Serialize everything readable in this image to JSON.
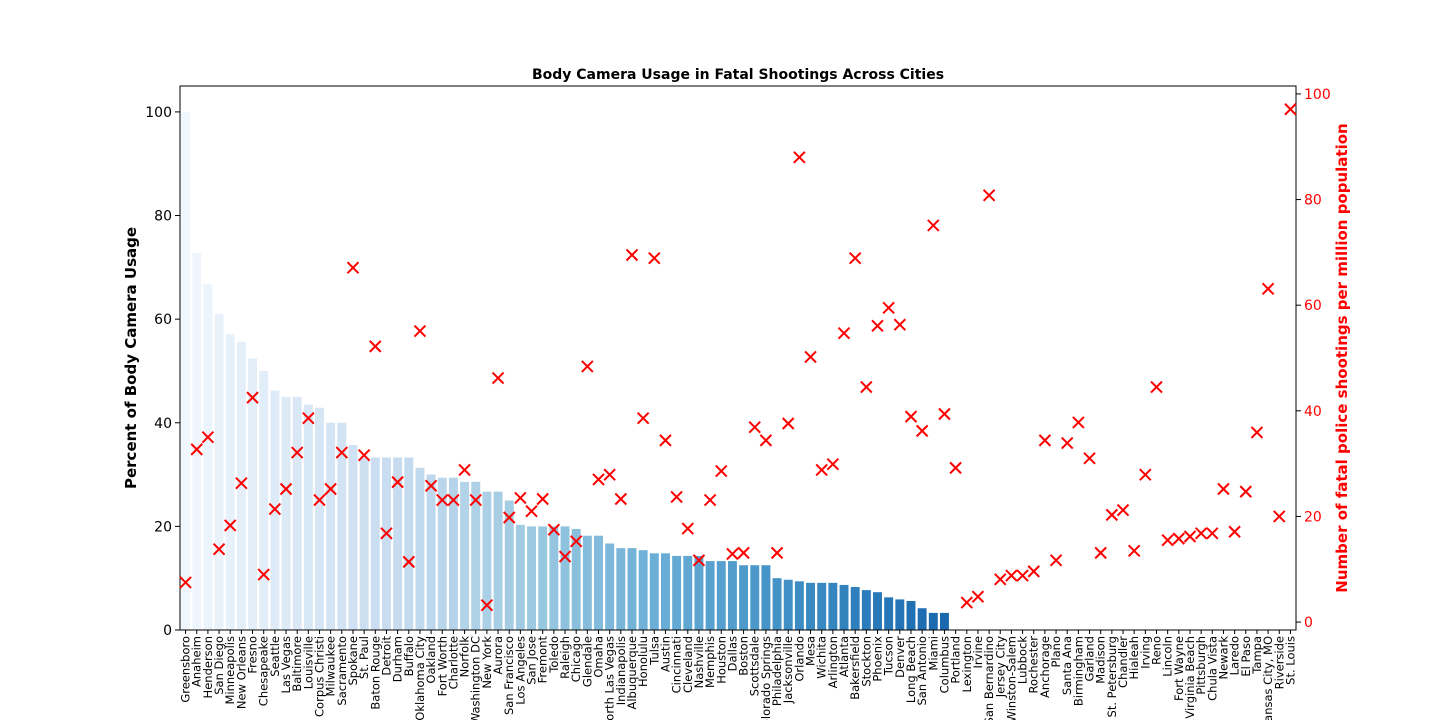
{
  "chart_data": {
    "type": "bar",
    "title": "Body Camera Usage in Fatal Shootings Across Cities",
    "ylabel": "Percent of Body Camera Usage",
    "y2label": "Number of fatal police shootings per million population",
    "ylim": [
      0,
      105
    ],
    "y2lim": [
      -1.5,
      101.5
    ],
    "yticks": [
      0,
      20,
      40,
      60,
      80,
      100
    ],
    "y2ticks": [
      0,
      20,
      40,
      60,
      80,
      100
    ],
    "bar_colormap": "Blues",
    "marker_color": "#ff0000",
    "marker_symbol": "x",
    "categories": [
      "Greensboro",
      "Anaheim",
      "Henderson",
      "San Diego",
      "Minneapolis",
      "New Orleans",
      "Fresno",
      "Chesapeake",
      "Seattle",
      "Las Vegas",
      "Baltimore",
      "Louisville",
      "Corpus Christi",
      "Milwaukee",
      "Sacramento",
      "Spokane",
      "St. Paul",
      "Baton Rouge",
      "Detroit",
      "Durham",
      "Buffalo",
      "Oklahoma City",
      "Oakland",
      "Fort Worth",
      "Charlotte",
      "Norfolk",
      "Washington DC",
      "New York",
      "Aurora",
      "San Francisco",
      "Los Angeles",
      "San Jose",
      "Fremont",
      "Toledo",
      "Raleigh",
      "Chicago",
      "Glendale",
      "Omaha",
      "North Las Vegas",
      "Indianapolis",
      "Albuquerque",
      "Honolulu",
      "Tulsa",
      "Austin",
      "Cincinnati",
      "Cleveland",
      "Nashville",
      "Memphis",
      "Houston",
      "Dallas",
      "Boston",
      "Scottsdale",
      "Colorado Springs",
      "Philadelphia",
      "Jacksonville",
      "Orlando",
      "Mesa",
      "Wichita",
      "Arlington",
      "Atlanta",
      "Bakersfield",
      "Stockton",
      "Phoenix",
      "Tucson",
      "Denver",
      "Long Beach",
      "San Antonio",
      "Miami",
      "Columbus",
      "Portland",
      "Lexington",
      "Irvine",
      "San Bernardino",
      "Jersey City",
      "Winston-Salem",
      "Lubbock",
      "Rochester",
      "Anchorage",
      "Plano",
      "Santa Ana",
      "Birmingham",
      "Garland",
      "Madison",
      "St. Petersburg",
      "Chandler",
      "Hialeah",
      "Irving",
      "Reno",
      "Lincoln",
      "Fort Wayne",
      "Virginia Beach",
      "Pittsburgh",
      "Chula Vista",
      "Newark",
      "Laredo",
      "El Paso",
      "Tampa",
      "Kansas City, MO",
      "Riverside",
      "St. Louis"
    ],
    "series": [
      {
        "name": "Percent of Body Camera Usage",
        "axis": "left",
        "values": [
          100,
          72.7,
          66.7,
          61,
          57.1,
          55.6,
          52.4,
          50,
          46.2,
          45,
          45,
          43.5,
          42.9,
          40,
          40,
          35.7,
          33.3,
          33.3,
          33.3,
          33.3,
          33.3,
          31.3,
          30,
          29.4,
          29.4,
          28.6,
          28.6,
          26.7,
          26.7,
          25,
          20.3,
          20,
          20,
          20,
          20,
          19.5,
          18.2,
          18.2,
          16.7,
          15.8,
          15.8,
          15.4,
          14.8,
          14.8,
          14.3,
          14.3,
          14.3,
          13.3,
          13.3,
          13.3,
          12.5,
          12.5,
          12.5,
          10,
          9.7,
          9.4,
          9.1,
          9.1,
          9.1,
          8.7,
          8.3,
          7.7,
          7.3,
          6.3,
          5.9,
          5.6,
          4.2,
          3.3,
          3.3,
          0,
          0,
          0,
          0,
          0,
          0,
          0,
          0,
          0,
          0,
          0,
          0,
          0,
          0,
          0,
          0,
          0,
          0,
          0,
          0,
          0,
          0,
          0,
          0,
          0,
          0,
          0,
          0,
          0,
          0,
          0
        ]
      },
      {
        "name": "Number of fatal police shootings per million population",
        "axis": "right",
        "values": [
          7.5,
          32.7,
          35,
          13.8,
          18.3,
          26.3,
          42.5,
          9,
          21.4,
          25.2,
          32.1,
          38.6,
          23.1,
          25.2,
          32.1,
          67.1,
          31.6,
          52.2,
          16.8,
          26.5,
          11.4,
          55.1,
          25.8,
          23.1,
          23.1,
          28.8,
          23.1,
          3.2,
          46.2,
          19.8,
          23.5,
          21,
          23.3,
          17.5,
          12.4,
          15.3,
          48.4,
          27,
          27.9,
          23.3,
          69.5,
          38.6,
          68.9,
          34.4,
          23.7,
          17.7,
          11.7,
          23.1,
          28.6,
          12.9,
          13.1,
          36.9,
          34.4,
          13.1,
          37.6,
          88,
          50.2,
          28.8,
          29.9,
          54.7,
          68.9,
          44.5,
          56.1,
          59.5,
          56.3,
          38.9,
          36.2,
          75.1,
          39.4,
          29.2,
          3.7,
          4.8,
          80.8,
          8.1,
          8.8,
          8.8,
          9.6,
          34.4,
          11.7,
          33.9,
          37.8,
          31,
          13.1,
          20.3,
          21.2,
          13.5,
          27.9,
          44.5,
          15.5,
          15.8,
          16.2,
          16.8,
          16.8,
          25.2,
          17.1,
          24.7,
          35.9,
          63.1,
          20,
          97.1
        ]
      }
    ]
  }
}
